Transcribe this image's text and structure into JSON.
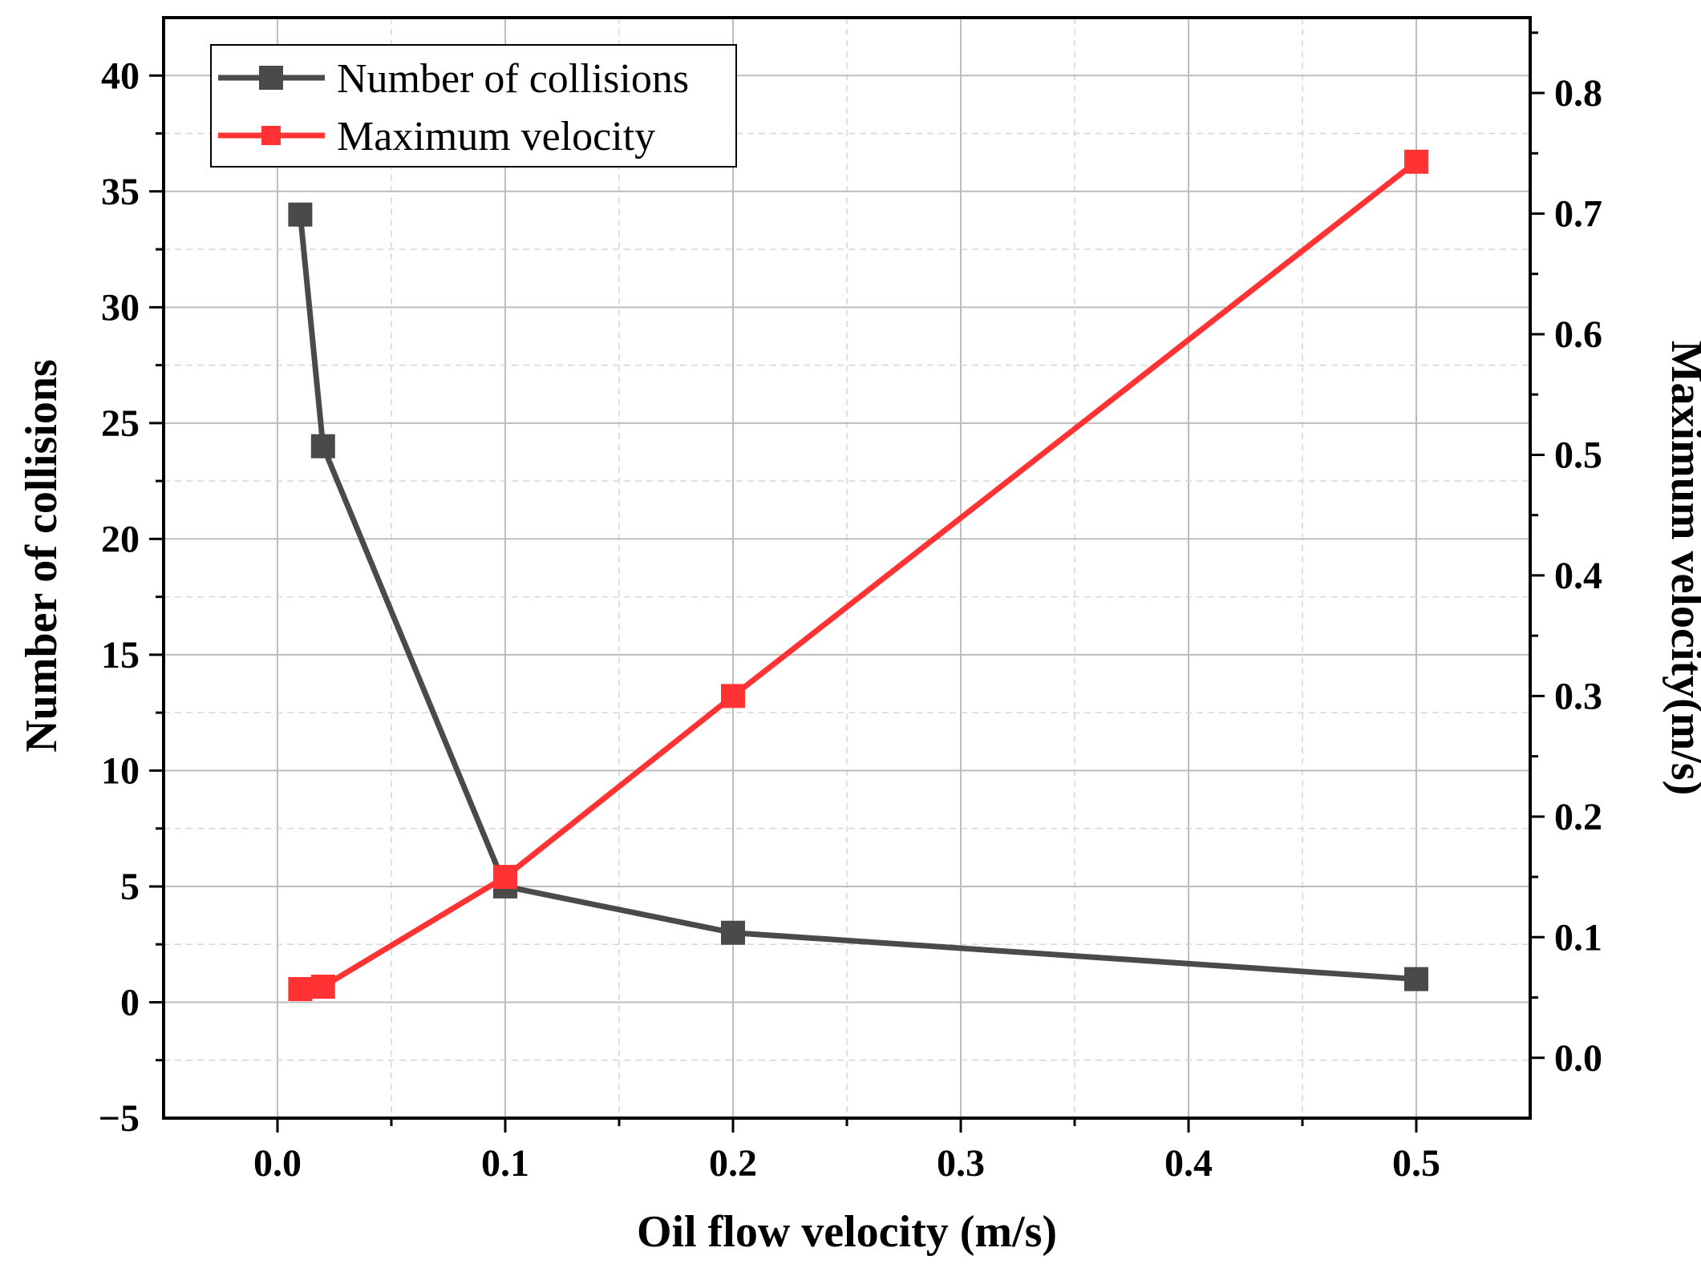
{
  "chart_data": {
    "type": "line",
    "xlabel": "Oil flow velocity (m/s)",
    "ylabel_left": "Number of collisions",
    "ylabel_right": "Maximum velocity(m/s)",
    "xlim": [
      -0.05,
      0.55
    ],
    "ylim_left": [
      -5,
      42.5
    ],
    "ylim_right": [
      -0.05,
      0.8625
    ],
    "x_ticks": [
      "0.0",
      "0.1",
      "0.2",
      "0.3",
      "0.4",
      "0.5"
    ],
    "y_left_ticks": [
      "−5",
      "0",
      "5",
      "10",
      "15",
      "20",
      "25",
      "30",
      "35",
      "40"
    ],
    "y_right_ticks": [
      "0.0",
      "0.1",
      "0.2",
      "0.3",
      "0.4",
      "0.5",
      "0.6",
      "0.7",
      "0.8"
    ],
    "grid": true,
    "legend_position": "top-left",
    "series": [
      {
        "name": "Number of collisions",
        "axis": "left",
        "color": "#4a4a4a",
        "x": [
          0.01,
          0.02,
          0.1,
          0.2,
          0.5
        ],
        "y": [
          34,
          24,
          5,
          3,
          1
        ]
      },
      {
        "name": "Maximum velocity",
        "axis": "right",
        "color": "#ff3333",
        "x": [
          0.01,
          0.02,
          0.1,
          0.2,
          0.5
        ],
        "y": [
          0.057,
          0.059,
          0.15,
          0.3,
          0.743
        ]
      }
    ]
  }
}
